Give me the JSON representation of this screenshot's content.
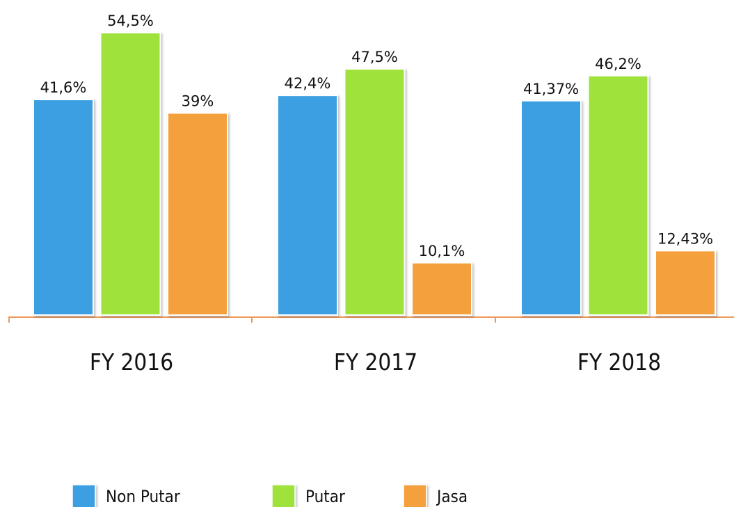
{
  "chart_data": {
    "type": "bar",
    "categories": [
      "FY 2016",
      "FY 2017",
      "FY 2018"
    ],
    "series": [
      {
        "name": "Non Putar",
        "color": "#3a9fe1",
        "values": [
          41.6,
          42.4,
          41.37
        ],
        "value_labels": [
          "41,6%",
          "42,4%",
          "41,37%"
        ]
      },
      {
        "name": "Putar",
        "color": "#9fe23b",
        "values": [
          54.5,
          47.5,
          46.2
        ],
        "value_labels": [
          "54,5%",
          "47,5%",
          "46,2%"
        ]
      },
      {
        "name": "Jasa",
        "color": "#f4a03e",
        "values": [
          39,
          10.1,
          12.43
        ],
        "value_labels": [
          "39%",
          "10,1%",
          "12,43%"
        ]
      }
    ]
  }
}
